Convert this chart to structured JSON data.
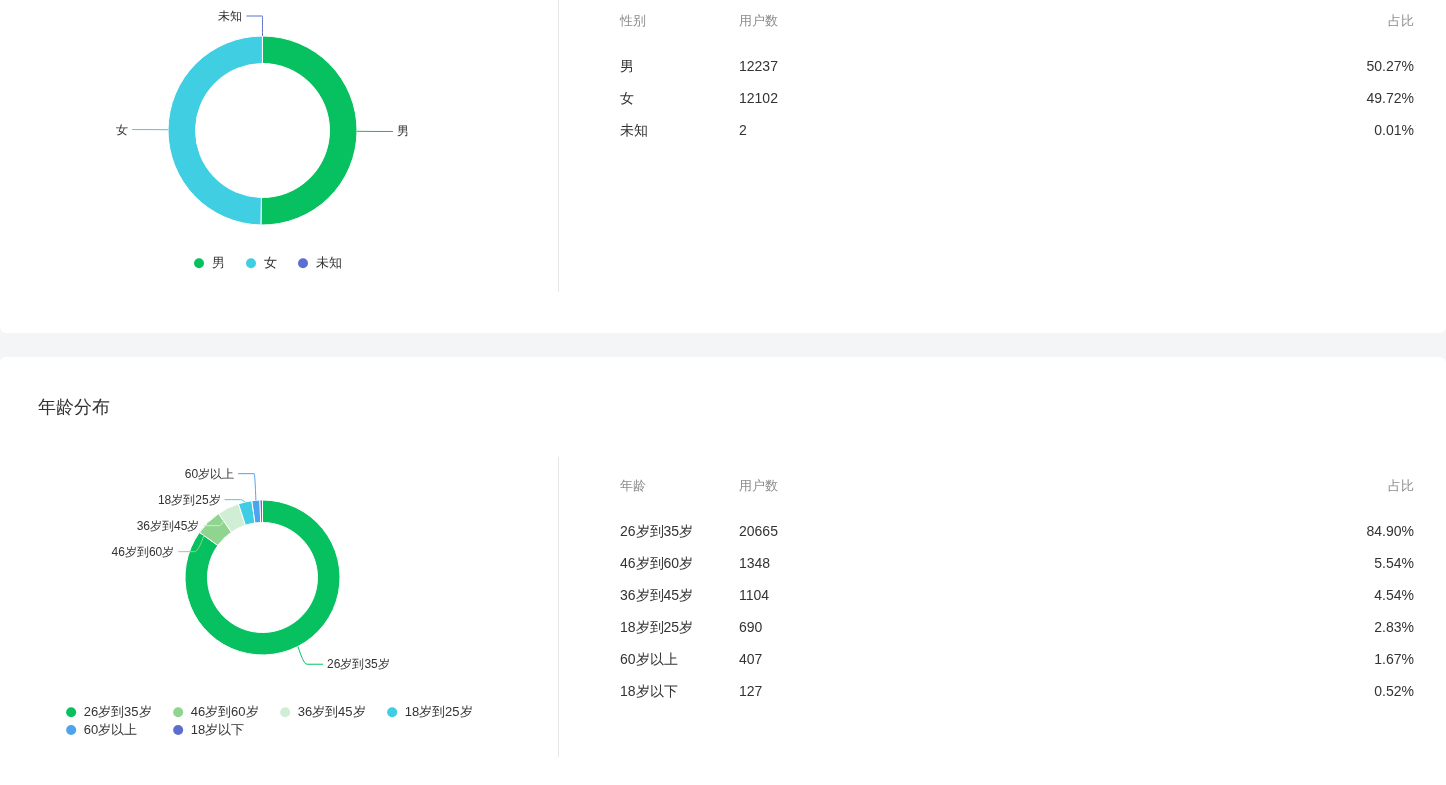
{
  "chart_data": [
    {
      "type": "donut",
      "categories": [
        "男",
        "女",
        "未知"
      ],
      "values": [
        50.27,
        49.72,
        0.01
      ],
      "colors": [
        "#07c160",
        "#40cee3",
        "#5b6fd0"
      ],
      "legend": "bottom"
    },
    {
      "type": "other",
      "annotations": [
        "性别",
        "用户数",
        "占比",
        "男",
        "12237",
        "50.27%",
        "女",
        "12102",
        "49.72%",
        "未知",
        "2",
        "0.01%"
      ]
    },
    {
      "type": "donut",
      "title": "年龄分布",
      "categories": [
        "26岁到35岁",
        "46岁到60岁",
        "36岁到45岁",
        "18岁到25岁",
        "60岁以上",
        "18岁以下"
      ],
      "values": [
        84.9,
        5.54,
        4.54,
        2.83,
        1.67,
        0.52
      ],
      "colors": [
        "#07c160",
        "#8fd48f",
        "#d0eed4",
        "#40cce2",
        "#4ea3ef",
        "#5d6ccf"
      ],
      "legend": "bottom"
    },
    {
      "type": "other",
      "annotations": [
        "年龄",
        "用户数",
        "占比",
        "26岁到35岁",
        "20665",
        "84.90%",
        "46岁到60岁",
        "1348",
        "5.54%",
        "36岁到45岁",
        "1104",
        "4.54%",
        "18岁到25岁",
        "690",
        "2.83%",
        "60岁以上",
        "407",
        "1.67%",
        "18岁以下",
        "127",
        "0.52%"
      ]
    }
  ]
}
